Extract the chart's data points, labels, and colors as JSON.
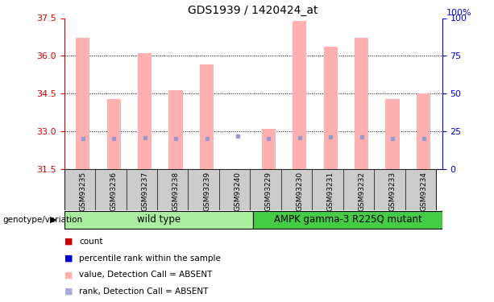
{
  "title": "GDS1939 / 1420424_at",
  "samples": [
    "GSM93235",
    "GSM93236",
    "GSM93237",
    "GSM93238",
    "GSM93239",
    "GSM93240",
    "GSM93229",
    "GSM93230",
    "GSM93231",
    "GSM93232",
    "GSM93233",
    "GSM93234"
  ],
  "bar_heights": [
    36.7,
    34.3,
    36.1,
    34.65,
    35.65,
    31.51,
    33.1,
    37.4,
    36.35,
    36.7,
    34.3,
    34.5
  ],
  "rank_values": [
    32.72,
    32.72,
    32.75,
    32.72,
    32.72,
    32.82,
    32.72,
    32.75,
    32.78,
    32.78,
    32.72,
    32.72
  ],
  "bar_bottom": 31.5,
  "ymin": 31.5,
  "ymax": 37.5,
  "y_ticks_left": [
    31.5,
    33.0,
    34.5,
    36.0,
    37.5
  ],
  "y_ticks_right": [
    0,
    25,
    50,
    75,
    100
  ],
  "bar_color": "#FFB0B0",
  "rank_color": "#9999CC",
  "wild_type_count": 6,
  "mutant_count": 6,
  "wild_type_label": "wild type",
  "mutant_label": "AMPK gamma-3 R225Q mutant",
  "group_label": "genotype/variation",
  "wild_type_color": "#AAEEA0",
  "mutant_color": "#44CC44",
  "legend_items": [
    {
      "color": "#CC0000",
      "label": "count"
    },
    {
      "color": "#0000CC",
      "label": "percentile rank within the sample"
    },
    {
      "color": "#FFB0B0",
      "label": "value, Detection Call = ABSENT"
    },
    {
      "color": "#AAAADD",
      "label": "rank, Detection Call = ABSENT"
    }
  ],
  "bar_width": 0.45,
  "tick_label_color_left": "#CC0000",
  "tick_label_color_right": "#0000CC",
  "grid_color": "#000000",
  "xlabel_bg_color": "#CCCCCC",
  "title_fontsize": 10,
  "axis_fontsize": 8,
  "legend_fontsize": 8
}
